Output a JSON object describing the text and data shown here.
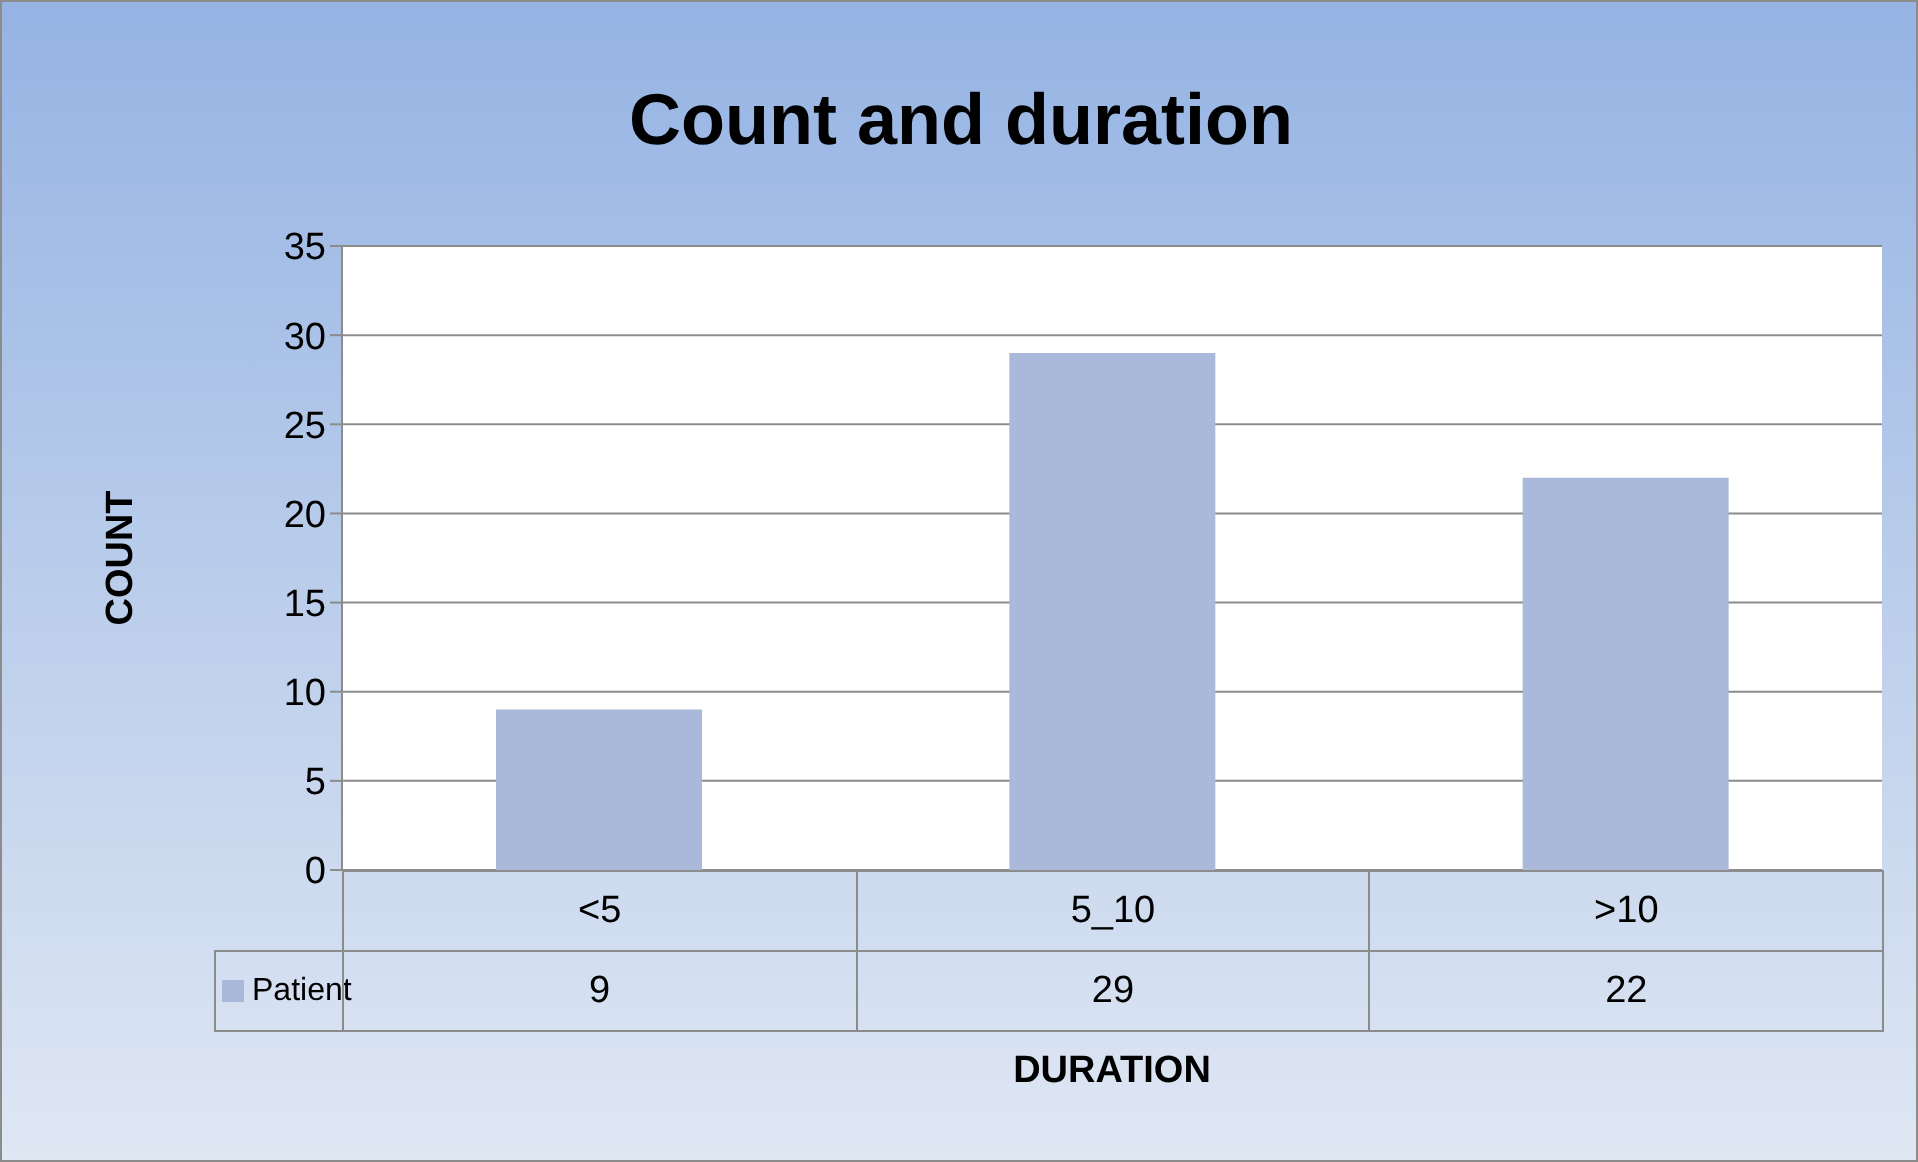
{
  "chart_data": {
    "type": "bar",
    "title": "Count and duration",
    "xlabel": "DURATION",
    "ylabel": "COUNT",
    "categories": [
      "<5",
      "5_10",
      ">10"
    ],
    "series": [
      {
        "name": "Patient",
        "color": "#aab9d9",
        "values": [
          9,
          29,
          22
        ]
      }
    ],
    "ylim": [
      0,
      35
    ],
    "yticks": [
      0,
      5,
      10,
      15,
      20,
      25,
      30,
      35
    ],
    "grid": "y",
    "legend": "bottom",
    "data_labels": true
  }
}
